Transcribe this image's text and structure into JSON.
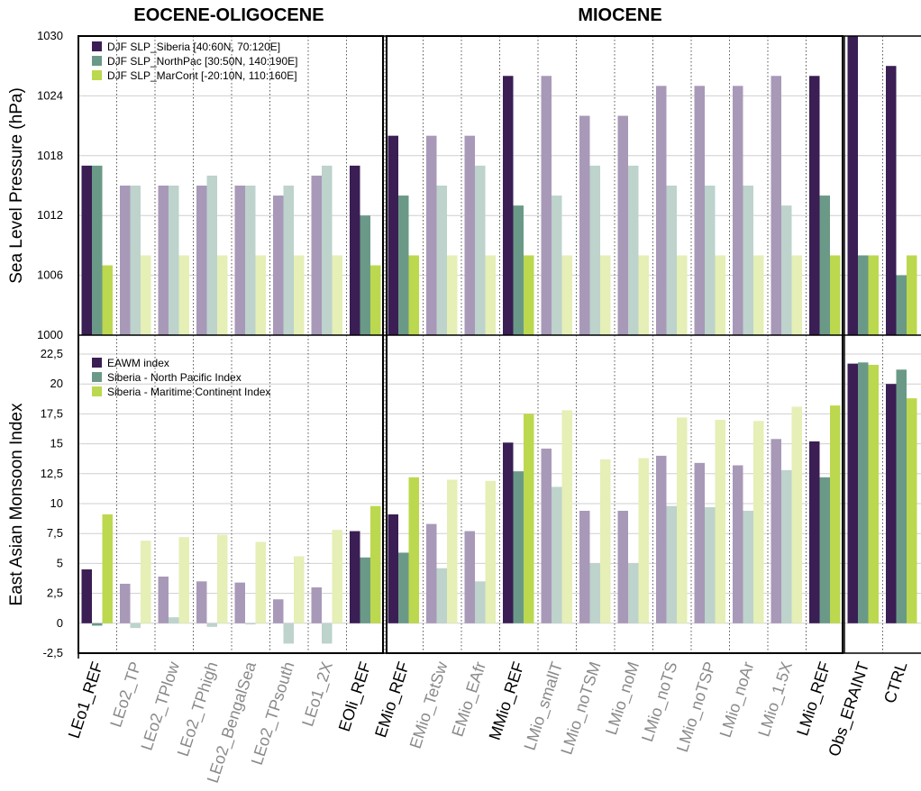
{
  "chart_data": [
    {
      "type": "bar",
      "panel": "top",
      "ylabel": "Sea Level Pressure (hPa)",
      "ylim": [
        1000,
        1030
      ],
      "yticks": [
        "1000",
        "1006",
        "1012",
        "1018",
        "1024",
        "1030"
      ],
      "grid": true,
      "legend_placement": "top-left",
      "series": [
        {
          "name": "DJF SLP_Siberia [40:60N, 70:120E]",
          "color": "#3a1e54",
          "values": [
            1017,
            1015,
            1015,
            1015,
            1015,
            1014,
            1016,
            1017,
            1020,
            1020,
            1020,
            1026,
            1026,
            1022,
            1022,
            1025,
            1025,
            1025,
            1026,
            1026,
            1030,
            1027
          ]
        },
        {
          "name": "DJF SLP_NorthPac [30:50N, 140:190E]",
          "color": "#6a9a87",
          "values": [
            1017,
            1015,
            1015,
            1016,
            1015,
            1015,
            1017,
            1012,
            1014,
            1015,
            1017,
            1013,
            1014,
            1017,
            1017,
            1015,
            1015,
            1015,
            1013,
            1014,
            1008,
            1006
          ]
        },
        {
          "name": "DJF SLP_MarCont [-20:10N, 110:160E]",
          "color": "#bcd84e",
          "values": [
            1007,
            1008,
            1008,
            1008,
            1008,
            1008,
            1008,
            1007,
            1008,
            1008,
            1008,
            1008,
            1008,
            1008,
            1008,
            1008,
            1008,
            1008,
            1008,
            1008,
            1008,
            1008
          ]
        }
      ]
    },
    {
      "type": "bar",
      "panel": "bottom",
      "ylabel": "East Asian Monsoon Index",
      "ylim": [
        -2.5,
        22.5
      ],
      "yticks": [
        "-2,5",
        "0",
        "2,5",
        "5",
        "7,5",
        "10",
        "12,5",
        "15",
        "17,5",
        "20",
        "22,5"
      ],
      "grid": true,
      "legend_placement": "top-left",
      "series": [
        {
          "name": "EAWM index",
          "color": "#3a1e54",
          "values": [
            4.5,
            3.3,
            3.9,
            3.5,
            3.4,
            2.0,
            3.0,
            7.7,
            9.1,
            8.3,
            7.7,
            15.1,
            14.6,
            9.4,
            9.4,
            14.0,
            13.4,
            13.2,
            15.4,
            15.2,
            21.7,
            20.0
          ]
        },
        {
          "name": "Siberia - North Pacific Index",
          "color": "#6a9a87",
          "values": [
            -0.2,
            -0.4,
            0.5,
            -0.3,
            -0.1,
            -1.7,
            -1.7,
            5.5,
            5.9,
            4.6,
            3.5,
            12.7,
            11.4,
            5.0,
            5.0,
            9.8,
            9.7,
            9.4,
            12.8,
            12.2,
            21.8,
            21.2
          ]
        },
        {
          "name": "Siberia - Maritime Continent Index",
          "color": "#bcd84e",
          "values": [
            9.1,
            6.9,
            7.2,
            7.4,
            6.8,
            5.6,
            7.8,
            9.8,
            12.2,
            12.0,
            11.9,
            17.5,
            17.8,
            13.7,
            13.8,
            17.2,
            17.0,
            16.9,
            18.1,
            18.2,
            21.6,
            18.8
          ]
        }
      ]
    }
  ],
  "sections": {
    "eocene": "EOCENE-OLIGOCENE",
    "miocene": "MIOCENE"
  },
  "categories": [
    "LEo1_REF",
    "LEo2_TP",
    "LEo2_TPlow",
    "LEo2_TPhigh",
    "LEo2_BengalSea",
    "LEo2_TPsouth",
    "LEo1_2X",
    "EOli_REF",
    "EMio_REF",
    "EMio_TetSw",
    "EMio_EAfr",
    "MMio_REF",
    "LMio_smallT",
    "LMio_noTSM",
    "LMio_noM",
    "LMio_noTS",
    "LMio_noTSP",
    "LMio_noAr",
    "LMio_1.5X",
    "LMio_REF",
    "Obs_ERAINT",
    "CTRL"
  ],
  "reference_runs": [
    true,
    false,
    false,
    false,
    false,
    false,
    false,
    true,
    true,
    false,
    false,
    true,
    false,
    false,
    false,
    false,
    false,
    false,
    false,
    true,
    true,
    true
  ],
  "faded_palette": [
    "#a899b8",
    "#bdd3cc",
    "#e5efb6"
  ],
  "label_colors": {
    "reference": "#000000",
    "sensitivity": "#8a8a8a"
  }
}
